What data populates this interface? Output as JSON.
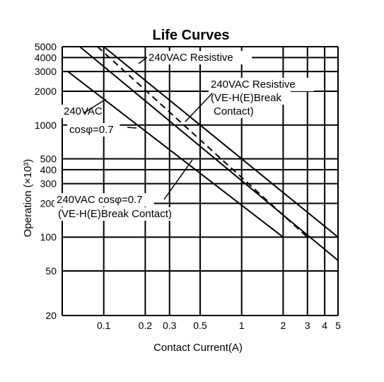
{
  "chart_data": {
    "type": "line",
    "title": "Life Curves",
    "xlabel": "Contact Current(A)",
    "ylabel": "Operation (×10³)",
    "x_scale": "log",
    "y_scale": "log",
    "xlim": [
      0.05,
      5
    ],
    "ylim": [
      20,
      5000
    ],
    "grid": true,
    "x_ticks": [
      {
        "value": 0.1,
        "label": "0.1"
      },
      {
        "value": 0.2,
        "label": "0.2"
      },
      {
        "value": 0.3,
        "label": "0.3"
      },
      {
        "value": 0.5,
        "label": "0.5"
      },
      {
        "value": 1,
        "label": "1"
      },
      {
        "value": 2,
        "label": "2"
      },
      {
        "value": 3,
        "label": "3"
      },
      {
        "value": 4,
        "label": "4"
      },
      {
        "value": 5,
        "label": "5"
      }
    ],
    "y_ticks": [
      {
        "value": 20,
        "label": "20"
      },
      {
        "value": 50,
        "label": "50"
      },
      {
        "value": 100,
        "label": "100"
      },
      {
        "value": 200,
        "label": "200"
      },
      {
        "value": 300,
        "label": "300"
      },
      {
        "value": 400,
        "label": "400"
      },
      {
        "value": 500,
        "label": "500"
      },
      {
        "value": 1000,
        "label": "1000"
      },
      {
        "value": 2000,
        "label": "2000"
      },
      {
        "value": 3000,
        "label": "3000"
      },
      {
        "value": 4000,
        "label": "4000"
      },
      {
        "value": 5000,
        "label": "5000"
      }
    ],
    "series": [
      {
        "style": "solid",
        "points": [
          [
            0.067,
            5000
          ],
          [
            5,
            62
          ]
        ]
      },
      {
        "style": "solid",
        "points": [
          [
            0.1,
            5000
          ],
          [
            5,
            100
          ]
        ]
      },
      {
        "style": "dashed",
        "points": [
          [
            0.09,
            5000
          ],
          [
            3,
            100
          ]
        ]
      },
      {
        "style": "solid",
        "points": [
          [
            0.055,
            3000
          ],
          [
            2,
            100
          ]
        ]
      }
    ],
    "annotations": [
      {
        "id": "res",
        "text": "240VAC  Resistive"
      },
      {
        "id": "resve1",
        "text": "240VAC  Resistive"
      },
      {
        "id": "resve2",
        "text": "(VE-H(E)Break"
      },
      {
        "id": "resve3",
        "text": "Contact)"
      },
      {
        "id": "cos1",
        "text": "240VAC"
      },
      {
        "id": "cos2",
        "text": "cosφ=0.7"
      },
      {
        "id": "cosve1",
        "text": "240VAC  cosφ=0.7"
      },
      {
        "id": "cosve2",
        "text": "(VE-H(E)Break Contact)"
      }
    ]
  }
}
